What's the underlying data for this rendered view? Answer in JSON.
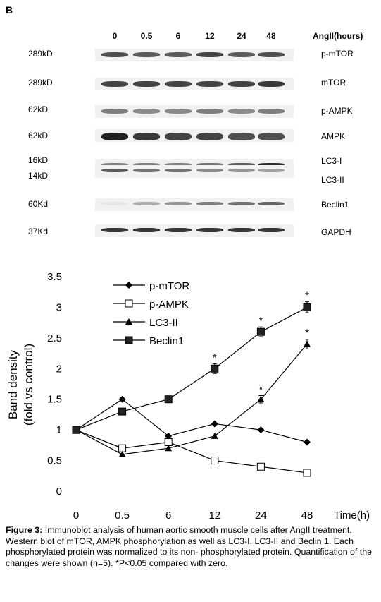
{
  "panel_label": "B",
  "blot": {
    "header": "AngII(hours)",
    "lanes": [
      "0",
      "0.5",
      "6",
      "12",
      "24",
      "48"
    ],
    "rows": [
      {
        "left": "289kD",
        "right": "p-mTOR"
      },
      {
        "left": "289kD",
        "right": "mTOR"
      },
      {
        "left": "62kD",
        "right": "p-AMPK"
      },
      {
        "left": "62kD",
        "right": "AMPK"
      },
      {
        "left": "16kD",
        "right": "LC3-I"
      },
      {
        "left": "14kD",
        "right": "LC3-II"
      },
      {
        "left": "60Kd",
        "right": "Beclin1"
      },
      {
        "left": "37Kd",
        "right": "GAPDH"
      }
    ]
  },
  "chart_data": {
    "type": "line",
    "categories": [
      "0",
      "0.5",
      "6",
      "12",
      "24",
      "48"
    ],
    "ylabel": "Band density (fold vs control)",
    "xlabel": "Time(h)",
    "ylim": [
      0,
      3.5
    ],
    "yticks": [
      "0",
      "0.5",
      "1",
      "1.5",
      "2",
      "2.5",
      "3",
      "3.5"
    ],
    "legend_position": "top-left",
    "series": [
      {
        "name": "p-mTOR",
        "marker": "diamond",
        "values": [
          1,
          1.5,
          0.9,
          1.1,
          1.0,
          0.8
        ],
        "errors": [
          0,
          0,
          0,
          0,
          0,
          0
        ],
        "significant": [
          false,
          false,
          false,
          false,
          false,
          false
        ]
      },
      {
        "name": "p-AMPK",
        "marker": "open-square",
        "values": [
          1,
          0.7,
          0.8,
          0.5,
          0.4,
          0.3
        ],
        "errors": [
          0,
          0,
          0,
          0,
          0,
          0
        ],
        "significant": [
          false,
          false,
          false,
          false,
          false,
          false
        ]
      },
      {
        "name": "LC3-II",
        "marker": "triangle",
        "values": [
          1,
          0.6,
          0.7,
          0.9,
          1.5,
          2.4
        ],
        "errors": [
          0,
          0,
          0,
          0,
          0.06,
          0.08
        ],
        "significant": [
          false,
          false,
          false,
          false,
          true,
          true
        ]
      },
      {
        "name": "Beclin1",
        "marker": "square",
        "values": [
          1,
          1.3,
          1.5,
          2.0,
          2.6,
          3.0
        ],
        "errors": [
          0,
          0,
          0,
          0.08,
          0.08,
          0.09
        ],
        "significant": [
          false,
          false,
          false,
          true,
          true,
          true
        ]
      }
    ],
    "significance_mark": "*"
  },
  "caption": {
    "label": "Figure 3:",
    "text": "Immunoblot analysis of human aortic smooth muscle cells after AngII treatment. Western blot of mTOR, AMPK phosphorylation as well as LC3-I, LC3-II and Beclin 1. Each phosphorylated protein was normalized to its non- phosphorylated protein. Quantification of the changes were shown (n=5). *P<0.05 compared with zero."
  }
}
